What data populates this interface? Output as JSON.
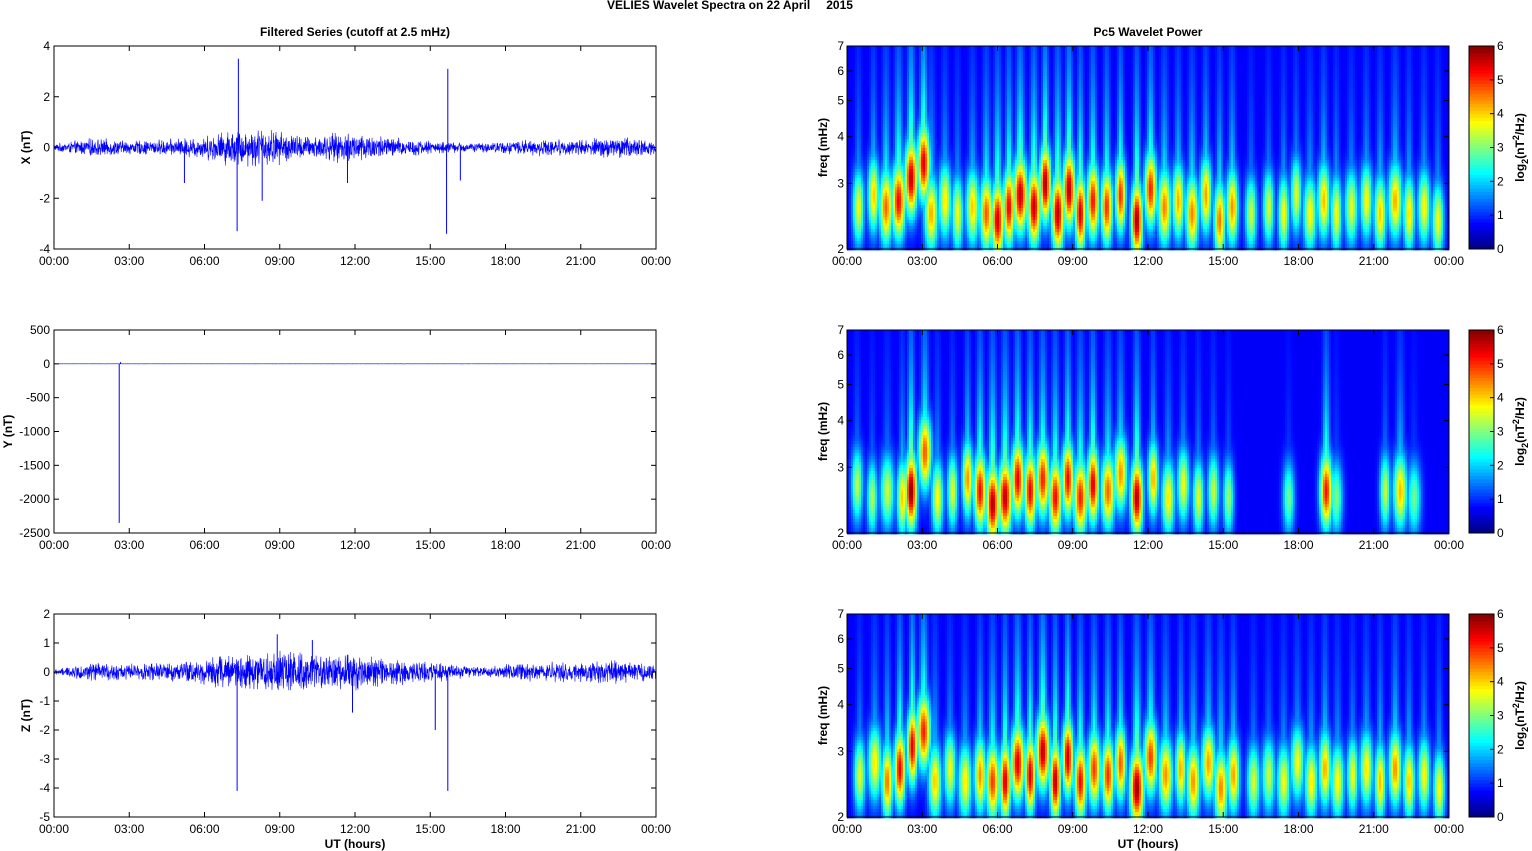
{
  "figure": {
    "suptitle": "VELIES Wavelet Spectra on 22 April",
    "year": "2015",
    "left_title": "Filtered Series (cutoff at 2.5 mHz)",
    "right_title": "Pc5 Wavelet Power",
    "xlabel": "UT (hours)"
  },
  "colors": {
    "trace": "#0000ff",
    "background": "#00008f",
    "colormap": "jet"
  },
  "chart_data": [
    {
      "id": "x-series",
      "type": "line",
      "ylabel": "X (nT)",
      "ylim": [
        -4,
        4
      ],
      "yticks": [
        -4,
        -2,
        0,
        2,
        4
      ],
      "xlim": [
        0,
        24
      ],
      "xtick_labels": [
        "00:00",
        "03:00",
        "06:00",
        "09:00",
        "12:00",
        "15:00",
        "18:00",
        "21:00",
        "00:00"
      ],
      "series": [
        {
          "envelope": [
            {
              "t": 0.0,
              "amp": 0.15
            },
            {
              "t": 1.5,
              "amp": 0.4
            },
            {
              "t": 3.0,
              "amp": 0.3
            },
            {
              "t": 4.5,
              "amp": 0.35
            },
            {
              "t": 6.0,
              "amp": 0.5
            },
            {
              "t": 7.0,
              "amp": 0.8
            },
            {
              "t": 8.5,
              "amp": 0.85
            },
            {
              "t": 10.0,
              "amp": 0.5
            },
            {
              "t": 12.0,
              "amp": 0.7
            },
            {
              "t": 13.5,
              "amp": 0.45
            },
            {
              "t": 15.5,
              "amp": 0.25
            },
            {
              "t": 17.0,
              "amp": 0.2
            },
            {
              "t": 19.0,
              "amp": 0.35
            },
            {
              "t": 21.0,
              "amp": 0.35
            },
            {
              "t": 22.5,
              "amp": 0.5
            },
            {
              "t": 24.0,
              "amp": 0.3
            }
          ],
          "spikes": [
            {
              "t": 7.35,
              "v": 3.5
            },
            {
              "t": 7.3,
              "v": -3.3
            },
            {
              "t": 8.3,
              "v": -2.1
            },
            {
              "t": 15.7,
              "v": 3.1
            },
            {
              "t": 15.65,
              "v": -3.4
            },
            {
              "t": 5.2,
              "v": -1.4
            },
            {
              "t": 11.7,
              "v": -1.4
            },
            {
              "t": 16.2,
              "v": -1.3
            },
            {
              "t": 24.0,
              "v": -0.9
            }
          ]
        }
      ]
    },
    {
      "id": "y-series",
      "type": "line",
      "ylabel": "Y (nT)",
      "ylim": [
        -2500,
        500
      ],
      "yticks": [
        -2500,
        -2000,
        -1500,
        -1000,
        -500,
        0,
        500
      ],
      "xlim": [
        0,
        24
      ],
      "xtick_labels": [
        "00:00",
        "03:00",
        "06:00",
        "09:00",
        "12:00",
        "15:00",
        "18:00",
        "21:00",
        "00:00"
      ],
      "series": [
        {
          "envelope": [
            {
              "t": 0.0,
              "amp": 1
            },
            {
              "t": 12.0,
              "amp": 1.5
            },
            {
              "t": 24.0,
              "amp": 1
            }
          ],
          "spikes": [
            {
              "t": 2.6,
              "v": -2350
            },
            {
              "t": 2.65,
              "v": 25
            }
          ]
        }
      ]
    },
    {
      "id": "z-series",
      "type": "line",
      "ylabel": "Z (nT)",
      "ylim": [
        -5,
        2
      ],
      "yticks": [
        -5,
        -4,
        -3,
        -2,
        -1,
        0,
        1,
        2
      ],
      "xlim": [
        0,
        24
      ],
      "xtick_labels": [
        "00:00",
        "03:00",
        "06:00",
        "09:00",
        "12:00",
        "15:00",
        "18:00",
        "21:00",
        "00:00"
      ],
      "series": [
        {
          "envelope": [
            {
              "t": 0.0,
              "amp": 0.1
            },
            {
              "t": 1.5,
              "amp": 0.35
            },
            {
              "t": 3.0,
              "amp": 0.3
            },
            {
              "t": 5.0,
              "amp": 0.4
            },
            {
              "t": 7.0,
              "amp": 0.7
            },
            {
              "t": 9.0,
              "amp": 0.85
            },
            {
              "t": 10.5,
              "amp": 0.6
            },
            {
              "t": 12.0,
              "amp": 0.7
            },
            {
              "t": 13.5,
              "amp": 0.5
            },
            {
              "t": 15.0,
              "amp": 0.4
            },
            {
              "t": 17.0,
              "amp": 0.2
            },
            {
              "t": 19.0,
              "amp": 0.35
            },
            {
              "t": 21.0,
              "amp": 0.4
            },
            {
              "t": 22.5,
              "amp": 0.45
            },
            {
              "t": 24.0,
              "amp": 0.3
            }
          ],
          "spikes": [
            {
              "t": 7.3,
              "v": -4.1
            },
            {
              "t": 8.9,
              "v": 1.3
            },
            {
              "t": 10.3,
              "v": 1.1
            },
            {
              "t": 11.9,
              "v": -1.4
            },
            {
              "t": 15.2,
              "v": -2.0
            },
            {
              "t": 15.7,
              "v": -4.1
            },
            {
              "t": 24.0,
              "v": -0.9
            }
          ]
        }
      ]
    },
    {
      "id": "x-wavelet",
      "type": "heatmap",
      "ylabel": "freq (mHz)",
      "ylim": [
        2,
        7
      ],
      "yscale": "log",
      "yticks": [
        2,
        3,
        4,
        5,
        6,
        7
      ],
      "xlim": [
        0,
        24
      ],
      "xtick_labels": [
        "00:00",
        "03:00",
        "06:00",
        "09:00",
        "12:00",
        "15:00",
        "18:00",
        "21:00",
        "00:00"
      ],
      "colorbar": {
        "label": "log2(nT2/Hz)",
        "range": [
          0,
          6
        ],
        "ticks": [
          0,
          1,
          2,
          3,
          4,
          5,
          6
        ]
      },
      "blobs": [
        {
          "t": 0.45,
          "f": 2.6,
          "p": 3.4
        },
        {
          "t": 1.05,
          "f": 2.8,
          "p": 3.8
        },
        {
          "t": 1.55,
          "f": 2.6,
          "p": 4.5
        },
        {
          "t": 2.05,
          "f": 2.7,
          "p": 5.2
        },
        {
          "t": 2.55,
          "f": 3.1,
          "p": 5.6
        },
        {
          "t": 3.05,
          "f": 3.4,
          "p": 5.4
        },
        {
          "t": 3.35,
          "f": 2.5,
          "p": 4.0
        },
        {
          "t": 3.9,
          "f": 2.7,
          "p": 3.6
        },
        {
          "t": 4.4,
          "f": 2.5,
          "p": 3.4
        },
        {
          "t": 5.0,
          "f": 2.6,
          "p": 3.8
        },
        {
          "t": 5.55,
          "f": 2.5,
          "p": 4.6
        },
        {
          "t": 6.0,
          "f": 2.4,
          "p": 5.5
        },
        {
          "t": 6.45,
          "f": 2.6,
          "p": 5.3
        },
        {
          "t": 6.9,
          "f": 2.8,
          "p": 5.6
        },
        {
          "t": 7.45,
          "f": 2.6,
          "p": 5.6
        },
        {
          "t": 7.9,
          "f": 3.0,
          "p": 5.8
        },
        {
          "t": 8.4,
          "f": 2.5,
          "p": 5.7
        },
        {
          "t": 8.85,
          "f": 2.9,
          "p": 5.7
        },
        {
          "t": 9.3,
          "f": 2.5,
          "p": 5.5
        },
        {
          "t": 9.8,
          "f": 2.7,
          "p": 5.1
        },
        {
          "t": 10.35,
          "f": 2.6,
          "p": 4.9
        },
        {
          "t": 10.9,
          "f": 2.8,
          "p": 4.9
        },
        {
          "t": 11.55,
          "f": 2.4,
          "p": 5.8
        },
        {
          "t": 12.1,
          "f": 2.9,
          "p": 5.0
        },
        {
          "t": 12.65,
          "f": 2.6,
          "p": 4.3
        },
        {
          "t": 13.2,
          "f": 2.7,
          "p": 4.0
        },
        {
          "t": 13.75,
          "f": 2.5,
          "p": 4.3
        },
        {
          "t": 14.3,
          "f": 2.8,
          "p": 4.1
        },
        {
          "t": 14.85,
          "f": 2.4,
          "p": 4.4
        },
        {
          "t": 15.35,
          "f": 2.6,
          "p": 4.2
        },
        {
          "t": 16.1,
          "f": 2.5,
          "p": 3.1
        },
        {
          "t": 16.8,
          "f": 2.6,
          "p": 3.2
        },
        {
          "t": 17.4,
          "f": 2.5,
          "p": 3.5
        },
        {
          "t": 17.9,
          "f": 2.8,
          "p": 3.3
        },
        {
          "t": 18.45,
          "f": 2.5,
          "p": 3.5
        },
        {
          "t": 19.0,
          "f": 2.7,
          "p": 3.9
        },
        {
          "t": 19.5,
          "f": 2.5,
          "p": 3.5
        },
        {
          "t": 20.1,
          "f": 2.6,
          "p": 3.3
        },
        {
          "t": 20.7,
          "f": 2.7,
          "p": 3.5
        },
        {
          "t": 21.25,
          "f": 2.5,
          "p": 3.8
        },
        {
          "t": 21.85,
          "f": 2.7,
          "p": 4.0
        },
        {
          "t": 22.4,
          "f": 2.5,
          "p": 3.7
        },
        {
          "t": 23.0,
          "f": 2.6,
          "p": 3.5
        },
        {
          "t": 23.55,
          "f": 2.4,
          "p": 3.4
        }
      ]
    },
    {
      "id": "y-wavelet",
      "type": "heatmap",
      "ylabel": "freq (mHz)",
      "ylim": [
        2,
        7
      ],
      "yscale": "log",
      "yticks": [
        2,
        3,
        4,
        5,
        6,
        7
      ],
      "xlim": [
        0,
        24
      ],
      "xtick_labels": [
        "00:00",
        "03:00",
        "06:00",
        "09:00",
        "12:00",
        "15:00",
        "18:00",
        "21:00",
        "00:00"
      ],
      "colorbar": {
        "label": "log2(nT2/Hz)",
        "range": [
          0,
          6
        ],
        "ticks": [
          0,
          1,
          2,
          3,
          4,
          5,
          6
        ]
      },
      "blobs": [
        {
          "t": 0.4,
          "f": 2.7,
          "p": 3.0
        },
        {
          "t": 1.0,
          "f": 2.5,
          "p": 2.9
        },
        {
          "t": 1.6,
          "f": 2.6,
          "p": 3.1
        },
        {
          "t": 2.2,
          "f": 2.5,
          "p": 3.8
        },
        {
          "t": 2.55,
          "f": 2.6,
          "p": 6.0
        },
        {
          "t": 3.1,
          "f": 3.3,
          "p": 4.6
        },
        {
          "t": 3.6,
          "f": 2.5,
          "p": 3.5
        },
        {
          "t": 4.2,
          "f": 2.6,
          "p": 3.3
        },
        {
          "t": 4.8,
          "f": 2.8,
          "p": 4.2
        },
        {
          "t": 5.3,
          "f": 2.6,
          "p": 5.2
        },
        {
          "t": 5.8,
          "f": 2.4,
          "p": 5.7
        },
        {
          "t": 6.3,
          "f": 2.5,
          "p": 5.6
        },
        {
          "t": 6.8,
          "f": 2.8,
          "p": 5.3
        },
        {
          "t": 7.3,
          "f": 2.6,
          "p": 5.3
        },
        {
          "t": 7.8,
          "f": 2.8,
          "p": 5.0
        },
        {
          "t": 8.3,
          "f": 2.5,
          "p": 5.2
        },
        {
          "t": 8.8,
          "f": 2.8,
          "p": 5.2
        },
        {
          "t": 9.3,
          "f": 2.5,
          "p": 5.0
        },
        {
          "t": 9.8,
          "f": 2.7,
          "p": 5.4
        },
        {
          "t": 10.4,
          "f": 2.6,
          "p": 4.5
        },
        {
          "t": 10.9,
          "f": 2.9,
          "p": 4.2
        },
        {
          "t": 11.55,
          "f": 2.5,
          "p": 5.7
        },
        {
          "t": 12.2,
          "f": 2.8,
          "p": 4.0
        },
        {
          "t": 12.8,
          "f": 2.5,
          "p": 3.6
        },
        {
          "t": 13.4,
          "f": 2.7,
          "p": 3.4
        },
        {
          "t": 14.0,
          "f": 2.5,
          "p": 3.3
        },
        {
          "t": 14.6,
          "f": 2.6,
          "p": 3.1
        },
        {
          "t": 15.2,
          "f": 2.5,
          "p": 2.8
        },
        {
          "t": 17.6,
          "f": 2.5,
          "p": 2.5
        },
        {
          "t": 19.1,
          "f": 2.6,
          "p": 5.1
        },
        {
          "t": 19.5,
          "f": 2.5,
          "p": 2.6
        },
        {
          "t": 21.45,
          "f": 2.6,
          "p": 3.1
        },
        {
          "t": 22.05,
          "f": 2.6,
          "p": 3.9
        },
        {
          "t": 22.6,
          "f": 2.5,
          "p": 2.5
        }
      ]
    },
    {
      "id": "z-wavelet",
      "type": "heatmap",
      "ylabel": "freq (mHz)",
      "ylim": [
        2,
        7
      ],
      "yscale": "log",
      "yticks": [
        2,
        3,
        4,
        5,
        6,
        7
      ],
      "xlim": [
        0,
        24
      ],
      "xtick_labels": [
        "00:00",
        "03:00",
        "06:00",
        "09:00",
        "12:00",
        "15:00",
        "18:00",
        "21:00",
        "00:00"
      ],
      "colorbar": {
        "label": "log2(nT2/Hz)",
        "range": [
          0,
          6
        ],
        "ticks": [
          0,
          1,
          2,
          3,
          4,
          5,
          6
        ]
      },
      "blobs": [
        {
          "t": 0.5,
          "f": 2.6,
          "p": 3.3
        },
        {
          "t": 1.1,
          "f": 2.8,
          "p": 3.6
        },
        {
          "t": 1.6,
          "f": 2.5,
          "p": 4.4
        },
        {
          "t": 2.1,
          "f": 2.7,
          "p": 5.3
        },
        {
          "t": 2.6,
          "f": 3.1,
          "p": 5.4
        },
        {
          "t": 3.05,
          "f": 3.4,
          "p": 5.0
        },
        {
          "t": 3.5,
          "f": 2.5,
          "p": 3.8
        },
        {
          "t": 4.1,
          "f": 2.7,
          "p": 3.4
        },
        {
          "t": 4.7,
          "f": 2.5,
          "p": 3.6
        },
        {
          "t": 5.3,
          "f": 2.6,
          "p": 4.2
        },
        {
          "t": 5.8,
          "f": 2.5,
          "p": 4.8
        },
        {
          "t": 6.3,
          "f": 2.5,
          "p": 5.5
        },
        {
          "t": 6.8,
          "f": 2.8,
          "p": 5.4
        },
        {
          "t": 7.3,
          "f": 2.6,
          "p": 5.5
        },
        {
          "t": 7.8,
          "f": 3.0,
          "p": 5.6
        },
        {
          "t": 8.3,
          "f": 2.5,
          "p": 5.7
        },
        {
          "t": 8.8,
          "f": 2.9,
          "p": 5.6
        },
        {
          "t": 9.3,
          "f": 2.5,
          "p": 5.2
        },
        {
          "t": 9.85,
          "f": 2.7,
          "p": 4.8
        },
        {
          "t": 10.4,
          "f": 2.6,
          "p": 4.9
        },
        {
          "t": 10.9,
          "f": 2.8,
          "p": 4.6
        },
        {
          "t": 11.55,
          "f": 2.4,
          "p": 5.9
        },
        {
          "t": 12.1,
          "f": 2.9,
          "p": 4.8
        },
        {
          "t": 12.7,
          "f": 2.6,
          "p": 4.2
        },
        {
          "t": 13.3,
          "f": 2.7,
          "p": 4.0
        },
        {
          "t": 13.8,
          "f": 2.5,
          "p": 4.2
        },
        {
          "t": 14.4,
          "f": 2.8,
          "p": 4.1
        },
        {
          "t": 14.9,
          "f": 2.4,
          "p": 4.3
        },
        {
          "t": 15.4,
          "f": 2.6,
          "p": 4.1
        },
        {
          "t": 16.2,
          "f": 2.5,
          "p": 3.2
        },
        {
          "t": 16.8,
          "f": 2.6,
          "p": 3.1
        },
        {
          "t": 17.4,
          "f": 2.5,
          "p": 3.4
        },
        {
          "t": 17.95,
          "f": 2.8,
          "p": 3.4
        },
        {
          "t": 18.5,
          "f": 2.5,
          "p": 3.6
        },
        {
          "t": 19.05,
          "f": 2.7,
          "p": 4.0
        },
        {
          "t": 19.55,
          "f": 2.5,
          "p": 3.5
        },
        {
          "t": 20.15,
          "f": 2.6,
          "p": 3.4
        },
        {
          "t": 20.7,
          "f": 2.7,
          "p": 3.6
        },
        {
          "t": 21.25,
          "f": 2.5,
          "p": 3.9
        },
        {
          "t": 21.85,
          "f": 2.7,
          "p": 4.2
        },
        {
          "t": 22.4,
          "f": 2.5,
          "p": 3.8
        },
        {
          "t": 23.0,
          "f": 2.6,
          "p": 3.5
        },
        {
          "t": 23.6,
          "f": 2.4,
          "p": 3.5
        }
      ]
    }
  ]
}
